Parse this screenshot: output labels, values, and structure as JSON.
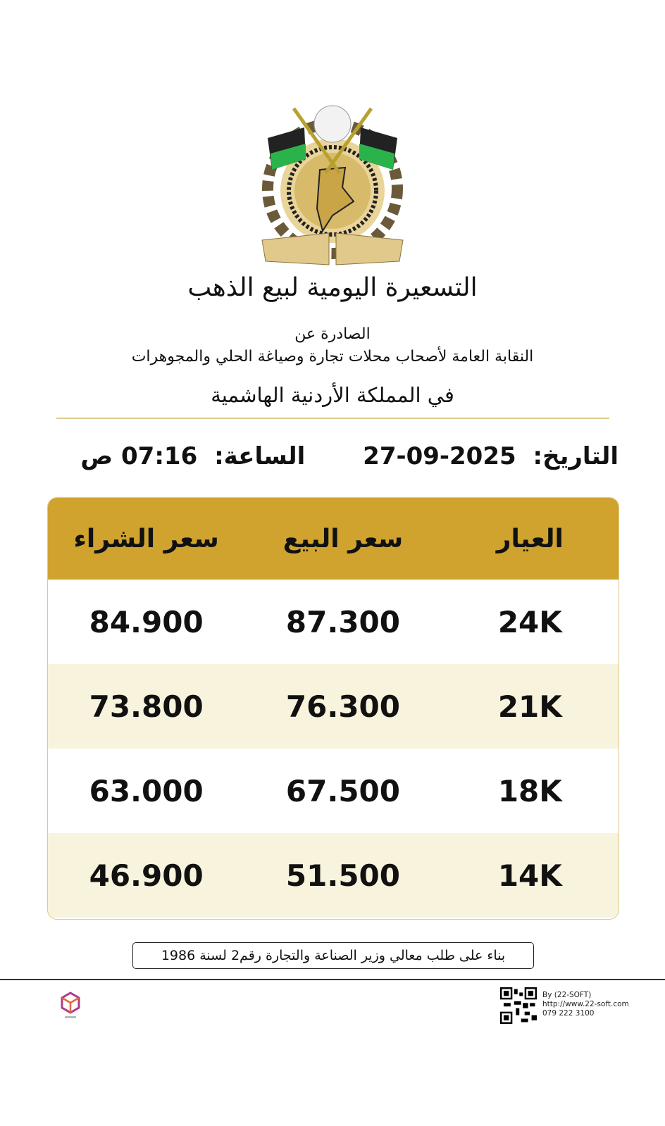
{
  "header": {
    "title": "التسعيرة اليومية لبيع الذهب",
    "issued_by": "الصادرة عن",
    "syndicate": "النقابة العامة لأصحاب محلات تجارة وصياغة الحلي والمجوهرات",
    "kingdom": "في المملكة الأردنية الهاشمية"
  },
  "datetime": {
    "date_label": "التاريخ:",
    "date": "27-09-2025",
    "time_label": "الساعة:",
    "time": "07:16 ص"
  },
  "table": {
    "columns": [
      "العيار",
      "سعر البيع",
      "سعر الشراء"
    ],
    "rows": [
      [
        "24K",
        "87.300",
        "84.900"
      ],
      [
        "21K",
        "76.300",
        "73.800"
      ],
      [
        "18K",
        "67.500",
        "63.000"
      ],
      [
        "14K",
        "51.500",
        "46.900"
      ]
    ]
  },
  "note": "بناء على طلب معالي وزير الصناعة والتجارة رقم2 لسنة 1986",
  "footer": {
    "by": "By (22-SOFT)",
    "url": "http://www.22-soft.com",
    "phone": "079 222 3100"
  },
  "colors": {
    "gold": "#cfa32e",
    "cream": "#f8f3dc"
  }
}
